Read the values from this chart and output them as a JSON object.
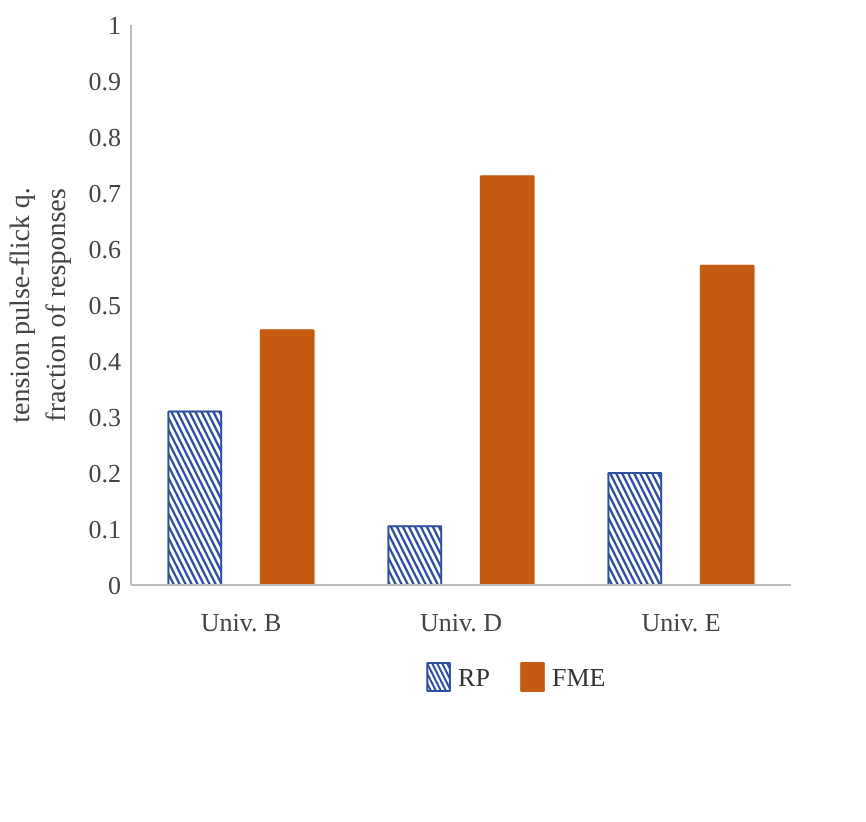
{
  "chart_data": {
    "type": "bar",
    "ylabel": "tension pulse-flick q.\nfraction of responses",
    "categories": [
      "Univ. B",
      "Univ. D",
      "Univ. E"
    ],
    "series": [
      {
        "name": "RP",
        "color": "#2e4f9e",
        "values": [
          0.31,
          0.105,
          0.2
        ]
      },
      {
        "name": "FME",
        "color": "#c55a11",
        "values": [
          0.455,
          0.73,
          0.57
        ]
      }
    ],
    "ylim": [
      0,
      1
    ],
    "yticks": [
      0,
      0.1,
      0.2,
      0.3,
      0.4,
      0.5,
      0.6,
      0.7,
      0.8,
      0.9,
      1
    ],
    "grid": false,
    "legend": "bottom"
  }
}
